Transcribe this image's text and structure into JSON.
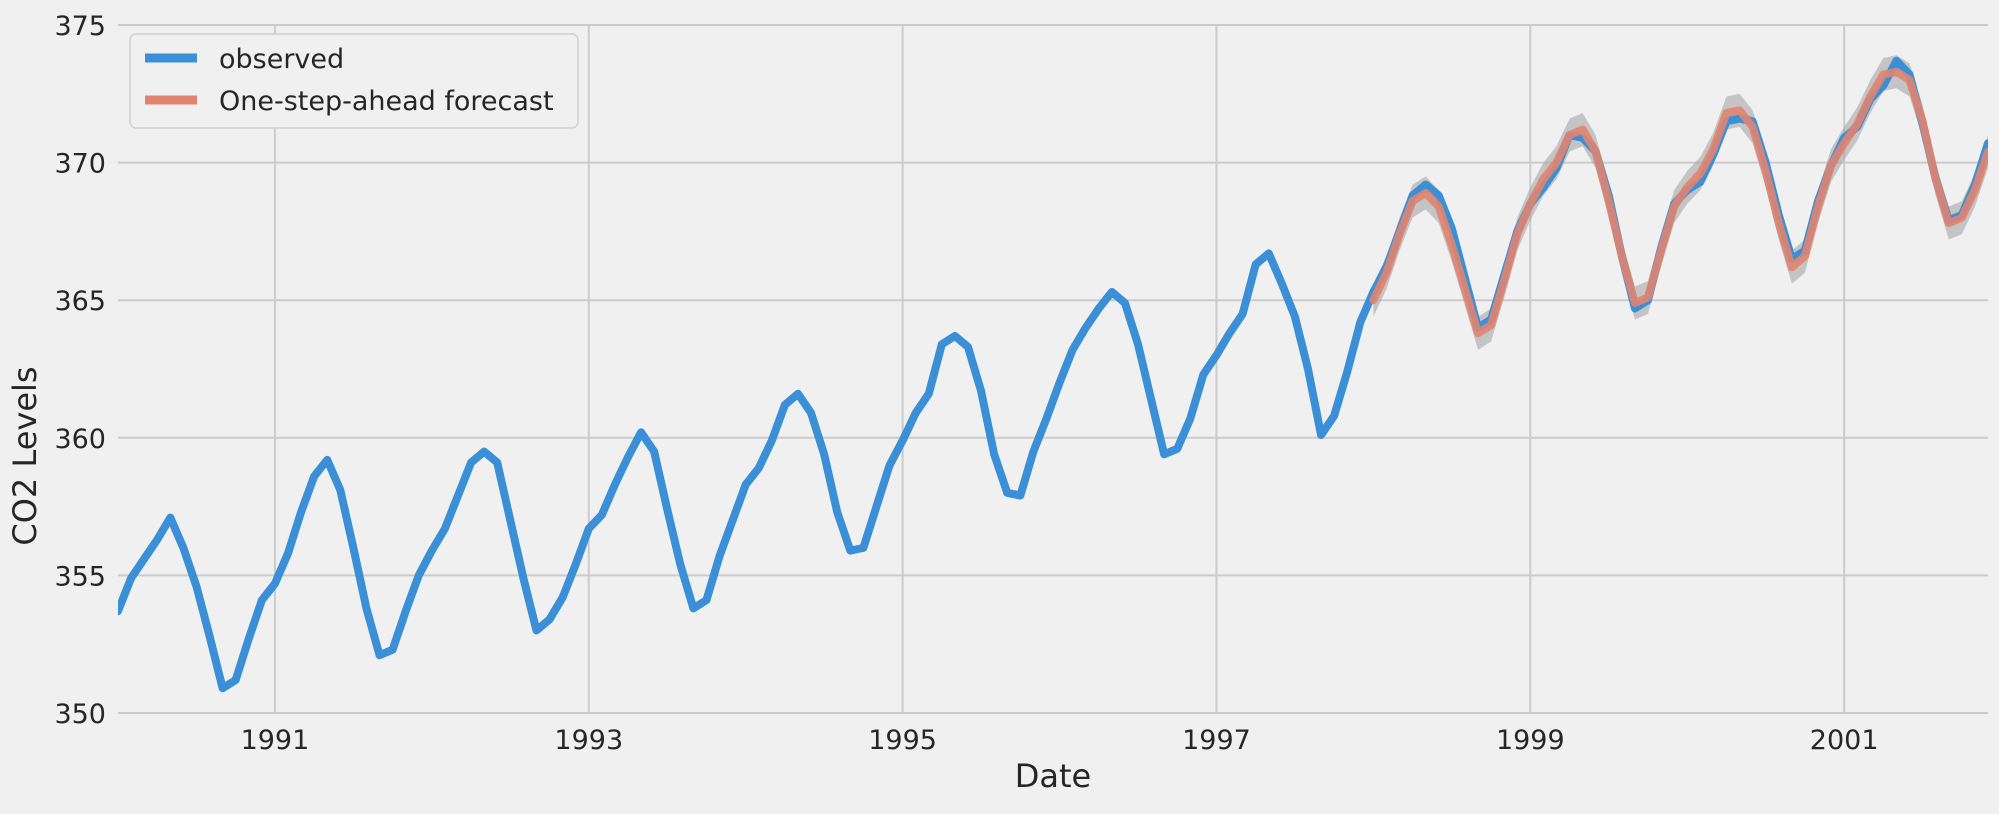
{
  "chart_data": {
    "type": "line",
    "title": "",
    "xlabel": "Date",
    "ylabel": "CO2 Levels",
    "xlim": [
      "1990-01",
      "2001-12"
    ],
    "ylim": [
      350,
      375
    ],
    "x_ticks": [
      "1991",
      "1993",
      "1995",
      "1997",
      "1999",
      "2001"
    ],
    "y_ticks": [
      "350",
      "355",
      "360",
      "365",
      "370",
      "375"
    ],
    "grid": true,
    "legend_position": "top-left",
    "colors": {
      "observed": "#3a8fd6",
      "forecast": "#e08470",
      "ci": "#a6a6a6",
      "background": "#f0f0f0",
      "grid": "#cbcbcb"
    },
    "series": [
      {
        "name": "observed",
        "start": "1990-01",
        "values": [
          353.7,
          354.9,
          355.6,
          356.3,
          357.1,
          356.0,
          354.6,
          352.8,
          350.9,
          351.2,
          352.7,
          354.1,
          354.7,
          355.8,
          357.3,
          358.6,
          359.2,
          358.1,
          356.0,
          353.8,
          352.1,
          352.3,
          353.7,
          355.0,
          355.9,
          356.7,
          357.9,
          359.1,
          359.5,
          359.1,
          357.0,
          354.9,
          353.0,
          353.4,
          354.2,
          355.4,
          356.7,
          357.2,
          358.3,
          359.3,
          360.2,
          359.5,
          357.4,
          355.4,
          353.8,
          354.1,
          355.7,
          357.0,
          358.3,
          358.9,
          359.9,
          361.2,
          361.6,
          360.9,
          359.4,
          357.3,
          355.9,
          356.0,
          357.5,
          359.0,
          359.9,
          360.9,
          361.6,
          363.4,
          363.7,
          363.3,
          361.7,
          359.4,
          358.0,
          357.9,
          359.5,
          360.7,
          362.0,
          363.2,
          364.0,
          364.7,
          365.3,
          364.9,
          363.4,
          361.4,
          359.4,
          359.6,
          360.7,
          362.3,
          363.0,
          363.8,
          364.5,
          366.3,
          366.7,
          365.6,
          364.4,
          362.5,
          360.1,
          360.8,
          362.4,
          364.2,
          365.3,
          366.2,
          367.5,
          368.8,
          369.2,
          368.8,
          367.6,
          365.8,
          364.0,
          364.3,
          365.9,
          367.5,
          368.5,
          369.1,
          369.8,
          371.0,
          370.9,
          370.4,
          368.8,
          366.6,
          364.7,
          365.0,
          366.9,
          368.5,
          369.0,
          369.3,
          370.3,
          371.5,
          371.6,
          371.5,
          370.0,
          368.1,
          366.5,
          366.8,
          368.6,
          369.9,
          370.9,
          371.3,
          372.3,
          372.8,
          373.7,
          373.2,
          371.4,
          369.4,
          367.9,
          368.1,
          369.2,
          370.7
        ]
      },
      {
        "name": "One-step-ahead forecast",
        "start": "1998-01",
        "values": [
          365.0,
          366.0,
          367.4,
          368.6,
          368.9,
          368.4,
          367.0,
          365.4,
          363.8,
          364.1,
          365.7,
          367.4,
          368.5,
          369.4,
          370.0,
          371.0,
          371.2,
          370.4,
          368.6,
          366.6,
          364.9,
          365.1,
          366.8,
          368.4,
          369.1,
          369.6,
          370.5,
          371.8,
          371.9,
          371.3,
          369.7,
          367.8,
          366.2,
          366.6,
          368.4,
          369.9,
          370.7,
          371.4,
          372.4,
          373.2,
          373.3,
          373.0,
          371.5,
          369.4,
          367.8,
          368.0,
          369.0,
          370.4
        ],
        "ci_lower": [
          364.4,
          365.4,
          366.8,
          368.0,
          368.3,
          367.8,
          366.4,
          364.8,
          363.2,
          363.5,
          365.1,
          366.8,
          367.9,
          368.8,
          369.4,
          370.4,
          370.6,
          369.8,
          368.0,
          366.0,
          364.3,
          364.5,
          366.2,
          367.8,
          368.5,
          369.0,
          369.9,
          371.2,
          371.3,
          370.7,
          369.1,
          367.2,
          365.6,
          366.0,
          367.8,
          369.3,
          370.1,
          370.8,
          371.8,
          372.6,
          372.7,
          372.4,
          370.9,
          368.8,
          367.2,
          367.4,
          368.4,
          369.8
        ],
        "ci_upper": [
          365.6,
          366.6,
          368.0,
          369.2,
          369.5,
          369.0,
          367.6,
          366.0,
          364.4,
          364.7,
          366.3,
          368.0,
          369.1,
          370.0,
          370.6,
          371.6,
          371.8,
          371.0,
          369.2,
          367.2,
          365.5,
          365.7,
          367.4,
          369.0,
          369.7,
          370.2,
          371.1,
          372.4,
          372.5,
          371.9,
          370.3,
          368.4,
          366.8,
          367.2,
          369.0,
          370.5,
          371.3,
          372.0,
          373.0,
          373.8,
          373.9,
          373.6,
          372.1,
          370.0,
          368.4,
          368.6,
          369.6,
          371.0
        ]
      }
    ]
  }
}
